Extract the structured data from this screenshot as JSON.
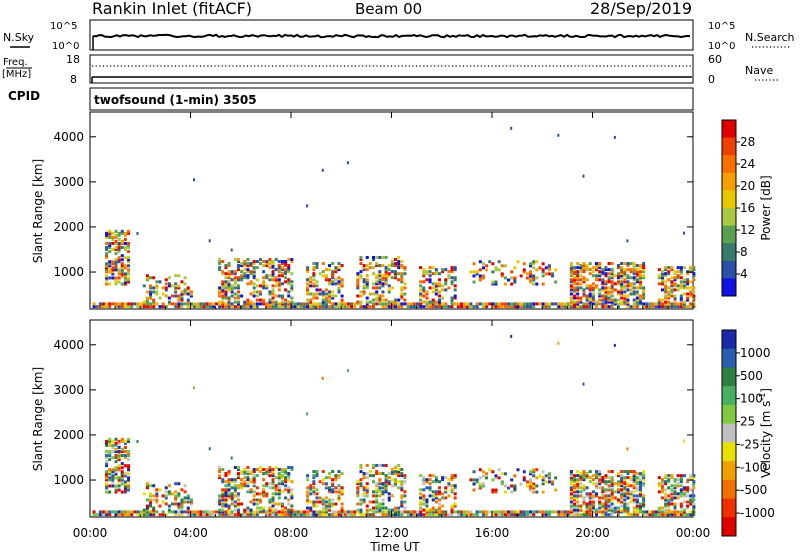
{
  "header": {
    "station": "Rankin Inlet (fitACF)",
    "beam": "Beam 00",
    "date": "28/Sep/2019"
  },
  "strip1": {
    "left_label": "N.Sky",
    "left_ticks": [
      "10^5",
      "10^0"
    ],
    "right_label": "N.Search",
    "right_ticks": [
      "10^5",
      "10^0"
    ]
  },
  "strip2": {
    "left_label_top": "Freq.",
    "left_label_bottom": "[MHz]",
    "left_ticks": [
      "18",
      "8"
    ],
    "right_label": "Nave",
    "right_ticks": [
      "60",
      "0"
    ]
  },
  "cpid": {
    "label": "CPID",
    "text": "twofsound (1-min) 3505"
  },
  "chart_data": [
    {
      "type": "heatmap",
      "name": "Power",
      "xlabel": "Time UT",
      "ylabel": "Slant Range [km]",
      "x_ticks": [
        "00:00",
        "04:00",
        "08:00",
        "12:00",
        "16:00",
        "20:00",
        "00:00"
      ],
      "xlim_hours": [
        0,
        24
      ],
      "y_ticks": [
        1000,
        2000,
        3000,
        4000
      ],
      "ylim": [
        180,
        4550
      ],
      "colorbar": {
        "label": "Power [dB]",
        "ticks": [
          "28",
          "24",
          "20",
          "16",
          "12",
          "8",
          "4"
        ],
        "colors": [
          "#e00000",
          "#f04000",
          "#f77000",
          "#f5a000",
          "#e8c800",
          "#a8c840",
          "#5aa050",
          "#3a7a6a",
          "#2a50a8",
          "#1010e0"
        ]
      }
    },
    {
      "type": "heatmap",
      "name": "Velocity",
      "xlabel": "Time UT",
      "ylabel": "Slant Range [km]",
      "x_ticks": [
        "00:00",
        "04:00",
        "08:00",
        "12:00",
        "16:00",
        "20:00",
        "00:00"
      ],
      "xlim_hours": [
        0,
        24
      ],
      "y_ticks": [
        1000,
        2000,
        3000,
        4000
      ],
      "ylim": [
        180,
        4550
      ],
      "colorbar": {
        "label": "Velocity [m s",
        "label_sup": "-1",
        "label_end": "]",
        "ticks": [
          "1000",
          "500",
          "100",
          "25",
          "-25",
          "-100",
          "-500",
          "-1000"
        ],
        "colors": [
          "#1a2aa8",
          "#2a5cb0",
          "#2f8040",
          "#48b060",
          "#80c840",
          "#c0c0c0",
          "#e8e000",
          "#f0a000",
          "#f07000",
          "#f03000",
          "#e00000"
        ]
      }
    }
  ],
  "strip_axis": {
    "x_ticks": [
      "00:00",
      "04:00",
      "08:00",
      "12:00",
      "16:00",
      "20:00",
      "00:00"
    ]
  }
}
